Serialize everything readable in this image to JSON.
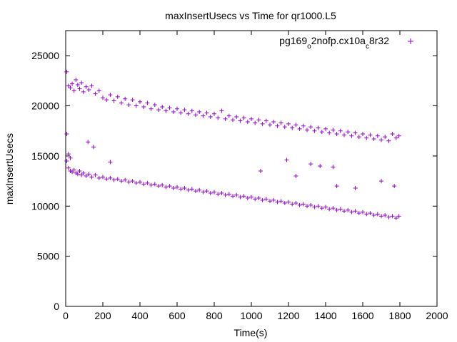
{
  "chart_data": {
    "type": "scatter",
    "title": "maxInsertUsecs vs Time for qr1000.L5",
    "xlabel": "Time(s)",
    "ylabel": "maxInsertUsecs",
    "xlim": [
      0,
      2000
    ],
    "ylim": [
      0,
      27500
    ],
    "x_ticks": [
      0,
      200,
      400,
      600,
      800,
      1000,
      1200,
      1400,
      1600,
      1800,
      2000
    ],
    "y_ticks": [
      0,
      5000,
      10000,
      15000,
      20000,
      25000
    ],
    "x_tick_labels": [
      "0",
      "200",
      "400",
      "600",
      "800",
      "1000",
      "1200",
      "1400",
      "1600",
      "1800",
      "2000"
    ],
    "y_tick_labels": [
      "0",
      "5000",
      "10000",
      "15000",
      "20000",
      "25000"
    ],
    "grid": false,
    "legend_position": "top-right",
    "marker": "plus",
    "series": [
      {
        "name": "pg169_o2nofp.cx10a_c8r32",
        "legend_parts": [
          {
            "text": "pg169",
            "sub": false
          },
          {
            "text": "o",
            "sub": true
          },
          {
            "text": "2nofp.cx10a",
            "sub": false
          },
          {
            "text": "c",
            "sub": true
          },
          {
            "text": "8r32",
            "sub": false
          }
        ],
        "color": "#9400d3",
        "x": [
          5,
          15,
          25,
          35,
          45,
          55,
          65,
          75,
          85,
          95,
          110,
          125,
          140,
          160,
          180,
          200,
          220,
          240,
          260,
          280,
          300,
          320,
          340,
          360,
          380,
          400,
          420,
          440,
          460,
          480,
          500,
          520,
          540,
          560,
          580,
          600,
          620,
          640,
          660,
          680,
          700,
          720,
          740,
          760,
          780,
          800,
          820,
          840,
          860,
          880,
          900,
          920,
          940,
          960,
          980,
          1000,
          1020,
          1040,
          1060,
          1080,
          1100,
          1120,
          1140,
          1160,
          1180,
          1200,
          1220,
          1240,
          1260,
          1280,
          1300,
          1320,
          1340,
          1360,
          1380,
          1400,
          1420,
          1440,
          1460,
          1480,
          1500,
          1520,
          1540,
          1560,
          1580,
          1600,
          1620,
          1640,
          1660,
          1680,
          1700,
          1720,
          1740,
          1760,
          1780,
          1795,
          5,
          15,
          25,
          35,
          45,
          55,
          65,
          75,
          85,
          95,
          110,
          125,
          140,
          160,
          180,
          200,
          220,
          240,
          260,
          280,
          300,
          320,
          340,
          360,
          380,
          400,
          420,
          440,
          460,
          480,
          500,
          520,
          540,
          560,
          580,
          600,
          620,
          640,
          660,
          680,
          700,
          720,
          740,
          760,
          780,
          800,
          820,
          840,
          860,
          880,
          900,
          920,
          940,
          960,
          980,
          1000,
          1020,
          1040,
          1060,
          1080,
          1100,
          1120,
          1140,
          1160,
          1180,
          1200,
          1220,
          1240,
          1260,
          1280,
          1300,
          1320,
          1340,
          1360,
          1380,
          1400,
          1420,
          1440,
          1460,
          1480,
          1500,
          1520,
          1540,
          1560,
          1580,
          1600,
          1620,
          1640,
          1660,
          1680,
          1700,
          1720,
          1740,
          1760,
          1780,
          1795,
          5,
          15,
          25,
          120,
          150,
          240,
          1050,
          1190,
          1240,
          1320,
          1370,
          1440,
          1460,
          1560,
          1700,
          1770
        ],
        "y": [
          23400,
          22000,
          21800,
          22200,
          21500,
          22600,
          22100,
          21700,
          22300,
          21400,
          21900,
          21600,
          22000,
          21200,
          21500,
          20800,
          20600,
          21100,
          20500,
          20900,
          20300,
          20700,
          20100,
          20600,
          20000,
          20400,
          19900,
          20300,
          19700,
          20100,
          19600,
          19900,
          19500,
          19800,
          19400,
          19700,
          19300,
          19600,
          19200,
          19500,
          19100,
          19400,
          19000,
          19300,
          18900,
          19200,
          18800,
          19500,
          18700,
          19000,
          18600,
          18900,
          18500,
          18800,
          18400,
          18700,
          18300,
          18600,
          18200,
          18500,
          18100,
          18400,
          18000,
          18300,
          17900,
          18200,
          17800,
          18100,
          17700,
          18000,
          17600,
          17900,
          17500,
          17800,
          17400,
          17700,
          17300,
          17600,
          17200,
          17500,
          17100,
          17400,
          17000,
          17300,
          16900,
          17200,
          16800,
          17100,
          16700,
          17000,
          16600,
          16900,
          16500,
          17200,
          16800,
          17000,
          14500,
          13800,
          13500,
          13400,
          13600,
          13300,
          13200,
          13500,
          13100,
          13300,
          13000,
          13200,
          12900,
          13100,
          12800,
          12900,
          12700,
          12800,
          12600,
          12700,
          12500,
          12600,
          12400,
          12500,
          12300,
          12400,
          12200,
          12300,
          12100,
          12200,
          12000,
          12100,
          11900,
          12000,
          11800,
          11900,
          11700,
          11800,
          11600,
          11700,
          11500,
          11600,
          11400,
          11500,
          11300,
          11400,
          11200,
          11300,
          11100,
          11200,
          11000,
          11100,
          10900,
          11000,
          10800,
          10900,
          10700,
          10800,
          10600,
          10700,
          10500,
          10600,
          10400,
          10500,
          10300,
          10400,
          10200,
          10300,
          10100,
          10200,
          10000,
          10100,
          9900,
          10000,
          9800,
          9900,
          9700,
          9800,
          9600,
          9700,
          9500,
          9600,
          9400,
          9500,
          9300,
          9400,
          9200,
          9300,
          9100,
          9200,
          9000,
          9100,
          8900,
          9000,
          8800,
          9000,
          17200,
          15200,
          14800,
          16400,
          15900,
          14400,
          13500,
          14600,
          13000,
          14200,
          14000,
          13900,
          12000,
          11800,
          12500,
          12000
        ]
      }
    ]
  }
}
